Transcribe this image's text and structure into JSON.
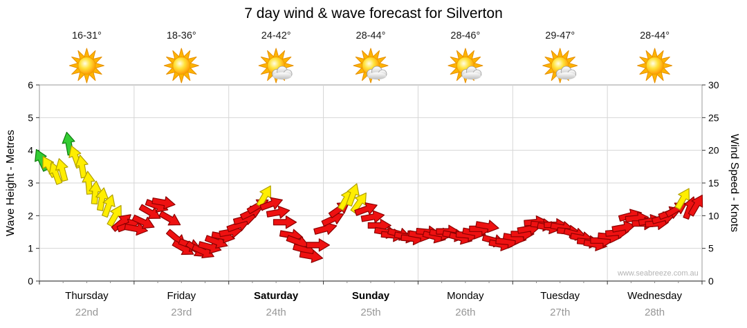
{
  "chart_data": {
    "type": "scatter",
    "marker": "wind-direction-arrows",
    "title": "7 day wind & wave forecast for Silverton",
    "ylabel_left": "Wave Height - Metres",
    "ylabel_right": "Wind Speed - Knots",
    "yticks_left": [
      0,
      1,
      2,
      3,
      4,
      5,
      6
    ],
    "yticks_right": [
      0,
      5,
      10,
      15,
      20,
      25,
      30
    ],
    "ylim_left": [
      0,
      6
    ],
    "ylim_right": [
      0,
      30
    ],
    "xlim_days": [
      0,
      7
    ],
    "grid": true,
    "watermark": "www.seabreeze.com.au",
    "days": [
      {
        "name": "Thursday",
        "date": "22nd",
        "temp": "16-31°",
        "icon": "sun",
        "bold": false
      },
      {
        "name": "Friday",
        "date": "23rd",
        "temp": "18-36°",
        "icon": "sun",
        "bold": false
      },
      {
        "name": "Saturday",
        "date": "24th",
        "temp": "24-42°",
        "icon": "sun-cloud",
        "bold": true
      },
      {
        "name": "Sunday",
        "date": "25th",
        "temp": "28-44°",
        "icon": "sun-cloud",
        "bold": true
      },
      {
        "name": "Monday",
        "date": "26th",
        "temp": "28-46°",
        "icon": "sun-cloud",
        "bold": false
      },
      {
        "name": "Tuesday",
        "date": "27th",
        "temp": "29-47°",
        "icon": "sun-cloud",
        "bold": false
      },
      {
        "name": "Wednesday",
        "date": "28th",
        "temp": "28-44°",
        "icon": "sun",
        "bold": false
      }
    ],
    "arrow_colors": {
      "g": {
        "label": "light",
        "fill": "#33cc33",
        "stroke": "#0c7a0c"
      },
      "y": {
        "label": "moderate",
        "fill": "#ffee00",
        "stroke": "#b09f00"
      },
      "r": {
        "label": "fresh",
        "fill": "#ee1111",
        "stroke": "#8b0000"
      }
    },
    "point_format": [
      "x_day",
      "knots",
      "color",
      "dir_deg"
    ],
    "points": [
      [
        0.02,
        18.5,
        "g",
        -115
      ],
      [
        0.1,
        17.5,
        "y",
        -120
      ],
      [
        0.17,
        16.5,
        "y",
        -110
      ],
      [
        0.24,
        17,
        "y",
        -105
      ],
      [
        0.31,
        21,
        "g",
        -100
      ],
      [
        0.38,
        19,
        "y",
        -110
      ],
      [
        0.45,
        17.5,
        "y",
        -100
      ],
      [
        0.52,
        15,
        "y",
        -95
      ],
      [
        0.59,
        13.5,
        "y",
        -85
      ],
      [
        0.66,
        12.5,
        "y",
        -80
      ],
      [
        0.73,
        11.5,
        "y",
        -70
      ],
      [
        0.8,
        10,
        "y",
        -60
      ],
      [
        0.87,
        9,
        "r",
        -40
      ],
      [
        0.94,
        8.5,
        "r",
        -20
      ],
      [
        1.02,
        8,
        "r",
        10
      ],
      [
        1.1,
        9,
        "r",
        25
      ],
      [
        1.17,
        10.5,
        "r",
        30
      ],
      [
        1.24,
        11.5,
        "r",
        20
      ],
      [
        1.31,
        12,
        "r",
        10
      ],
      [
        1.38,
        9.5,
        "r",
        30
      ],
      [
        1.45,
        6.5,
        "r",
        40
      ],
      [
        1.52,
        5,
        "r",
        30
      ],
      [
        1.59,
        5.5,
        "r",
        20
      ],
      [
        1.66,
        4.8,
        "r",
        35
      ],
      [
        1.73,
        4.5,
        "r",
        25
      ],
      [
        1.8,
        5.2,
        "r",
        15
      ],
      [
        1.87,
        6,
        "r",
        20
      ],
      [
        1.94,
        6.8,
        "r",
        10
      ],
      [
        2.02,
        7.5,
        "r",
        -10
      ],
      [
        2.1,
        8.5,
        "r",
        -20
      ],
      [
        2.17,
        9.5,
        "r",
        -15
      ],
      [
        2.24,
        10.5,
        "r",
        -25
      ],
      [
        2.31,
        11.5,
        "r",
        -30
      ],
      [
        2.38,
        13,
        "y",
        -60
      ],
      [
        2.45,
        11.8,
        "r",
        -20
      ],
      [
        2.52,
        10.5,
        "r",
        -10
      ],
      [
        2.59,
        9,
        "r",
        0
      ],
      [
        2.66,
        7,
        "r",
        10
      ],
      [
        2.73,
        6,
        "r",
        20
      ],
      [
        2.8,
        4.8,
        "r",
        15
      ],
      [
        2.87,
        3.8,
        "r",
        10
      ],
      [
        2.94,
        5.5,
        "r",
        0
      ],
      [
        3.02,
        8,
        "r",
        -15
      ],
      [
        3.1,
        9.5,
        "r",
        -25
      ],
      [
        3.17,
        11,
        "r",
        -35
      ],
      [
        3.24,
        12.5,
        "y",
        -60
      ],
      [
        3.31,
        13.2,
        "y",
        -70
      ],
      [
        3.38,
        12,
        "y",
        -55
      ],
      [
        3.45,
        11,
        "r",
        -20
      ],
      [
        3.52,
        9.8,
        "r",
        -10
      ],
      [
        3.59,
        8.5,
        "r",
        0
      ],
      [
        3.66,
        7.5,
        "r",
        10
      ],
      [
        3.73,
        7,
        "r",
        5
      ],
      [
        3.8,
        7.2,
        "r",
        15
      ],
      [
        3.87,
        6.8,
        "r",
        10
      ],
      [
        3.94,
        6.5,
        "r",
        5
      ],
      [
        4.02,
        7,
        "r",
        10
      ],
      [
        4.1,
        7.5,
        "r",
        5
      ],
      [
        4.17,
        6.8,
        "r",
        15
      ],
      [
        4.24,
        7.2,
        "r",
        10
      ],
      [
        4.31,
        7.6,
        "r",
        0
      ],
      [
        4.38,
        7,
        "r",
        10
      ],
      [
        4.45,
        6.6,
        "r",
        15
      ],
      [
        4.52,
        7,
        "r",
        5
      ],
      [
        4.59,
        7.4,
        "r",
        10
      ],
      [
        4.66,
        8,
        "r",
        0
      ],
      [
        4.73,
        8.4,
        "r",
        10
      ],
      [
        4.8,
        6.2,
        "r",
        15
      ],
      [
        4.87,
        5.6,
        "r",
        10
      ],
      [
        4.94,
        6,
        "r",
        5
      ],
      [
        5.02,
        6.6,
        "r",
        10
      ],
      [
        5.1,
        7.2,
        "r",
        0
      ],
      [
        5.17,
        8,
        "r",
        -10
      ],
      [
        5.24,
        9,
        "r",
        -5
      ],
      [
        5.31,
        8.6,
        "r",
        5
      ],
      [
        5.38,
        8.2,
        "r",
        10
      ],
      [
        5.45,
        8.6,
        "r",
        0
      ],
      [
        5.52,
        8.2,
        "r",
        10
      ],
      [
        5.59,
        7.6,
        "r",
        5
      ],
      [
        5.66,
        7.2,
        "r",
        15
      ],
      [
        5.73,
        6.6,
        "r",
        10
      ],
      [
        5.8,
        6,
        "r",
        5
      ],
      [
        5.87,
        5.6,
        "r",
        10
      ],
      [
        5.94,
        6.2,
        "r",
        0
      ],
      [
        6.02,
        6.8,
        "r",
        5
      ],
      [
        6.1,
        7.4,
        "r",
        -5
      ],
      [
        6.17,
        8.2,
        "r",
        -10
      ],
      [
        6.24,
        10,
        "r",
        -15
      ],
      [
        6.31,
        9.6,
        "r",
        -5
      ],
      [
        6.38,
        8.8,
        "r",
        0
      ],
      [
        6.45,
        9.2,
        "r",
        -10
      ],
      [
        6.52,
        8.8,
        "r",
        -5
      ],
      [
        6.59,
        9.6,
        "r",
        -15
      ],
      [
        6.66,
        10.4,
        "r",
        -20
      ],
      [
        6.73,
        11,
        "r",
        -30
      ],
      [
        6.8,
        12.6,
        "y",
        -60
      ],
      [
        6.87,
        11.2,
        "r",
        -70
      ],
      [
        6.94,
        11.6,
        "r",
        -60
      ]
    ]
  }
}
